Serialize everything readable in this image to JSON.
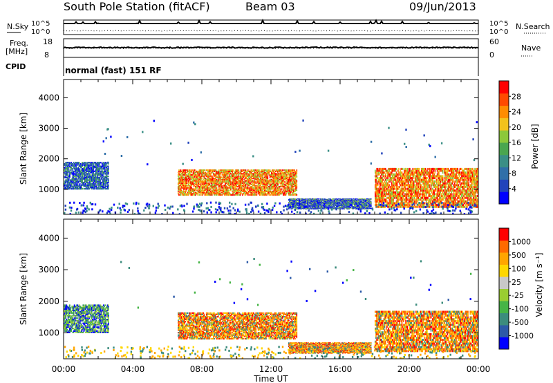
{
  "header": {
    "station": "South Pole Station (fitACF)",
    "beam": "Beam 03",
    "date": "09/Jun/2013"
  },
  "panels": {
    "nsky_label": "N.Sky",
    "nsearch_label": "N.Search",
    "nsky_ticks": [
      "10^5",
      "10^0"
    ],
    "nsearch_ticks": [
      "10^5",
      "10^0"
    ],
    "freq_label": "Freq.",
    "freq_unit": "[MHz]",
    "freq_ticks": [
      "18",
      "8"
    ],
    "nave_label": "Nave",
    "nave_ticks": [
      "60",
      "0"
    ],
    "cpid_label": "CPID",
    "cpid_value": "normal (fast) 151 RF"
  },
  "chart_data": [
    {
      "type": "heatmap",
      "title": "",
      "xlabel": "Time UT",
      "ylabel": "Slant Range [km]",
      "xlim": [
        0,
        24
      ],
      "ylim": [
        180,
        4600
      ],
      "x_tick_labels": [
        "00:00",
        "04:00",
        "08:00",
        "12:00",
        "16:00",
        "20:00",
        "00:00"
      ],
      "y_ticks": [
        1000,
        2000,
        3000,
        4000
      ],
      "y_tick_labels": [
        "1000",
        "2000",
        "3000",
        "4000"
      ],
      "colorbar": {
        "label": "Power [dB]",
        "ticks": [
          "4",
          "8",
          "12",
          "16",
          "20",
          "24",
          "28"
        ],
        "colors": [
          "#0000ff",
          "#2244bb",
          "#2f6fa8",
          "#3a8f86",
          "#4aa64f",
          "#8cc83a",
          "#f2c21c",
          "#ff8c00",
          "#ff4a00",
          "#ff0000"
        ]
      },
      "regions": [
        {
          "t0": 0.0,
          "t1": 2.6,
          "r0": 1000,
          "r1": 1900,
          "value": "mid"
        },
        {
          "t0": 6.6,
          "t1": 13.5,
          "r0": 800,
          "r1": 1650,
          "value": "high"
        },
        {
          "t0": 13.0,
          "t1": 17.8,
          "r0": 350,
          "r1": 700,
          "value": "low"
        },
        {
          "t0": 18.0,
          "t1": 24.0,
          "r0": 400,
          "r1": 1700,
          "value": "high"
        }
      ]
    },
    {
      "type": "heatmap",
      "title": "",
      "xlabel": "Time UT",
      "ylabel": "Slant Range [km]",
      "xlim": [
        0,
        24
      ],
      "ylim": [
        180,
        4600
      ],
      "x_tick_labels": [
        "00:00",
        "04:00",
        "08:00",
        "12:00",
        "16:00",
        "20:00",
        "00:00"
      ],
      "y_ticks": [
        1000,
        2000,
        3000,
        4000
      ],
      "y_tick_labels": [
        "1000",
        "2000",
        "3000",
        "4000"
      ],
      "colorbar": {
        "label": "Velocity [m s⁻¹]",
        "ticks": [
          "1000",
          "500",
          "100",
          "25",
          "-25",
          "-100",
          "-500",
          "-1000"
        ],
        "colors": [
          "#0000ff",
          "#2d5aa8",
          "#3c8c7d",
          "#46b446",
          "#9acd32",
          "#c8c8c8",
          "#ffd700",
          "#ffa500",
          "#ff6a00",
          "#ff0000"
        ]
      },
      "regions": [
        {
          "t0": 0.0,
          "t1": 2.6,
          "r0": 1000,
          "r1": 1900,
          "value": "green"
        },
        {
          "t0": 6.6,
          "t1": 13.5,
          "r0": 800,
          "r1": 1650,
          "value": "orange"
        },
        {
          "t0": 13.0,
          "t1": 17.8,
          "r0": 350,
          "r1": 700,
          "value": "orange"
        },
        {
          "t0": 18.0,
          "t1": 24.0,
          "r0": 400,
          "r1": 1700,
          "value": "orange"
        }
      ]
    }
  ]
}
